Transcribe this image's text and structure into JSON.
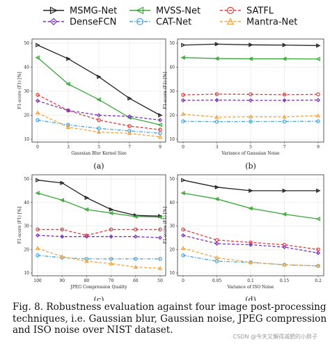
{
  "legend": [
    {
      "name": "MSMG-Net",
      "color": "#222222",
      "dash": "solid",
      "marker": "triangle-right"
    },
    {
      "name": "MVSS-Net",
      "color": "#3aa63a",
      "dash": "solid",
      "marker": "triangle-left"
    },
    {
      "name": "SATFL",
      "color": "#e23b3b",
      "dash": "dashed",
      "marker": "circle"
    },
    {
      "name": "DenseFCN",
      "color": "#7b2fbf",
      "dash": "dashed",
      "marker": "diamond"
    },
    {
      "name": "CAT-Net",
      "color": "#4aa3e0",
      "dash": "dashdot",
      "marker": "circle"
    },
    {
      "name": "Mantra-Net",
      "color": "#f2a33a",
      "dash": "dashed",
      "marker": "triangle-up"
    }
  ],
  "chart_data": [
    {
      "type": "line",
      "panel": "(a)",
      "xlabel": "Gaussian Blur Kernel Size",
      "ylabel": "F1-score (F1) [%]",
      "x": [
        0,
        3,
        5,
        7,
        9
      ],
      "x_ticks": [
        "0",
        "3",
        "5",
        "7",
        "9"
      ],
      "ylim": [
        10,
        50
      ],
      "y_ticks": [
        10,
        20,
        30,
        40,
        50
      ],
      "series": [
        {
          "name": "MSMG-Net",
          "values": [
            49.2,
            43.5,
            36.0,
            27.0,
            20.0
          ]
        },
        {
          "name": "MVSS-Net",
          "values": [
            44.0,
            33.0,
            26.5,
            19.0,
            16.0
          ]
        },
        {
          "name": "SATFL",
          "values": [
            28.5,
            22.0,
            18.0,
            15.5,
            14.0
          ]
        },
        {
          "name": "DenseFCN",
          "values": [
            26.0,
            22.0,
            20.0,
            19.5,
            18.0
          ]
        },
        {
          "name": "CAT-Net",
          "values": [
            18.0,
            16.0,
            14.5,
            13.5,
            12.5
          ]
        },
        {
          "name": "Mantra-Net",
          "values": [
            21.0,
            15.0,
            13.0,
            12.5,
            11.0
          ]
        }
      ]
    },
    {
      "type": "line",
      "panel": "(b)",
      "xlabel": "Variance of Gaussian Noise",
      "ylabel": "F1-score (F1) [%]",
      "x": [
        0,
        3,
        5,
        7,
        9
      ],
      "x_ticks": [
        "0",
        "3",
        "5",
        "7",
        "9"
      ],
      "ylim": [
        10,
        50
      ],
      "y_ticks": [
        10,
        20,
        30,
        40,
        50
      ],
      "series": [
        {
          "name": "MSMG-Net",
          "values": [
            49.2,
            49.6,
            49.3,
            49.2,
            49.0
          ]
        },
        {
          "name": "MVSS-Net",
          "values": [
            44.0,
            43.6,
            43.5,
            43.5,
            43.4
          ]
        },
        {
          "name": "SATFL",
          "values": [
            28.5,
            28.8,
            28.7,
            28.6,
            28.7
          ]
        },
        {
          "name": "DenseFCN",
          "values": [
            26.2,
            26.3,
            26.2,
            26.2,
            26.3
          ]
        },
        {
          "name": "CAT-Net",
          "values": [
            17.5,
            17.3,
            17.4,
            17.4,
            17.5
          ]
        },
        {
          "name": "Mantra-Net",
          "values": [
            20.5,
            19.2,
            19.4,
            19.3,
            19.8
          ]
        }
      ]
    },
    {
      "type": "line",
      "panel": "(c)",
      "xlabel": "JPEG Compression Quality",
      "ylabel": "F1-score (F1) [%]",
      "x": [
        100,
        90,
        80,
        70,
        60,
        50
      ],
      "x_ticks": [
        "100",
        "90",
        "80",
        "70",
        "60",
        "50"
      ],
      "ylim": [
        10,
        50
      ],
      "y_ticks": [
        10,
        20,
        30,
        40,
        50
      ],
      "series": [
        {
          "name": "MSMG-Net",
          "values": [
            49.5,
            48.3,
            42.0,
            37.0,
            34.5,
            34.2
          ]
        },
        {
          "name": "MVSS-Net",
          "values": [
            44.0,
            41.0,
            37.0,
            35.5,
            34.0,
            33.8
          ]
        },
        {
          "name": "SATFL",
          "values": [
            28.5,
            28.5,
            26.0,
            28.5,
            28.5,
            28.5
          ]
        },
        {
          "name": "DenseFCN",
          "values": [
            26.0,
            25.5,
            25.5,
            25.5,
            25.5,
            25.0
          ]
        },
        {
          "name": "CAT-Net",
          "values": [
            17.5,
            16.5,
            16.0,
            16.0,
            16.0,
            16.0
          ]
        },
        {
          "name": "Mantra-Net",
          "values": [
            20.5,
            17.0,
            15.0,
            14.0,
            12.5,
            12.0
          ]
        }
      ]
    },
    {
      "type": "line",
      "panel": "(d)",
      "xlabel": "Variance of ISO Noise",
      "ylabel": "F1-score (F1) [%]",
      "x": [
        0,
        0.05,
        0.1,
        0.15,
        0.2
      ],
      "x_ticks": [
        "0",
        "0.05",
        "0.1",
        "0.15",
        "0.2"
      ],
      "ylim": [
        10,
        50
      ],
      "y_ticks": [
        10,
        20,
        30,
        40,
        50
      ],
      "series": [
        {
          "name": "MSMG-Net",
          "values": [
            49.5,
            46.5,
            45.0,
            45.0,
            45.0
          ]
        },
        {
          "name": "MVSS-Net",
          "values": [
            44.0,
            41.5,
            37.5,
            35.0,
            33.0
          ]
        },
        {
          "name": "SATFL",
          "values": [
            28.5,
            24.0,
            23.0,
            22.0,
            20.0
          ]
        },
        {
          "name": "DenseFCN",
          "values": [
            26.0,
            22.5,
            22.0,
            21.0,
            18.5
          ]
        },
        {
          "name": "CAT-Net",
          "values": [
            17.5,
            15.0,
            14.5,
            13.5,
            13.0
          ]
        },
        {
          "name": "Mantra-Net",
          "values": [
            20.5,
            16.5,
            14.5,
            13.5,
            13.0
          ]
        }
      ]
    }
  ],
  "caption_lines": [
    "Fig. 8.  Robustness evaluation against four image post-processing",
    "techniques, i.e. Gaussian blur, Gaussian noise, JPEG compression",
    "and ISO noise over NIST dataset."
  ],
  "watermark": "CSDN @今天又懈得减肥的小胖子"
}
